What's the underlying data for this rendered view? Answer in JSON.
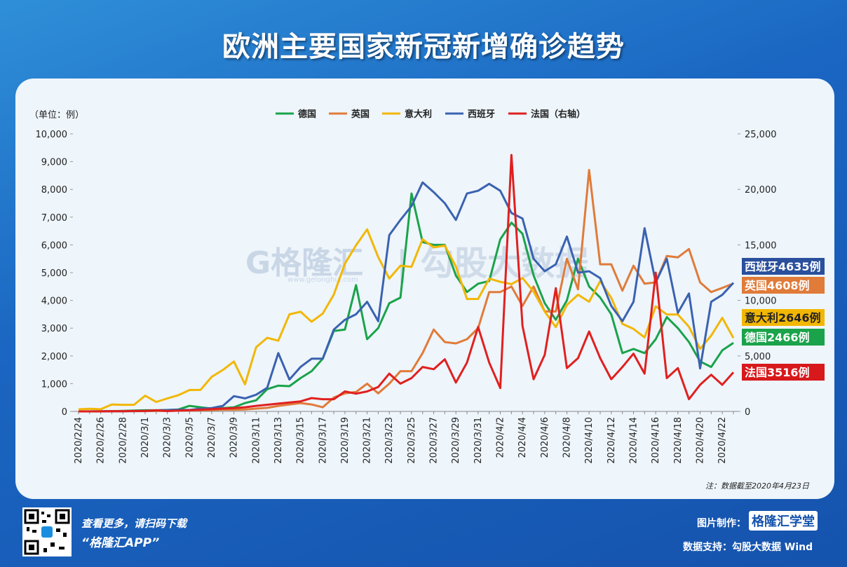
{
  "chart_data": {
    "type": "line",
    "title": "欧洲主要国家新冠新增确诊趋势",
    "y_unit": "（单位：例）",
    "note": "注：数据截至2020年4月23日",
    "categories": [
      "2020/2/24",
      null,
      "2020/2/26",
      null,
      "2020/2/28",
      null,
      "2020/3/1",
      null,
      "2020/3/3",
      null,
      "2020/3/5",
      null,
      "2020/3/7",
      null,
      "2020/3/9",
      null,
      "2020/3/11",
      null,
      "2020/3/13",
      null,
      "2020/3/15",
      null,
      "2020/3/17",
      null,
      "2020/3/19",
      null,
      "2020/3/21",
      null,
      "2020/3/23",
      null,
      "2020/3/25",
      null,
      "2020/3/27",
      null,
      "2020/3/29",
      null,
      "2020/3/31",
      null,
      "2020/4/2",
      null,
      "2020/4/4",
      null,
      "2020/4/6",
      null,
      "2020/4/8",
      null,
      "2020/4/10",
      null,
      "2020/4/12",
      null,
      "2020/4/14",
      null,
      "2020/4/16",
      null,
      "2020/4/18",
      null,
      "2020/4/20",
      null,
      "2020/4/22",
      null
    ],
    "series": [
      {
        "name": "德国",
        "color": "#1aa34a",
        "values": [
          0,
          2,
          5,
          10,
          20,
          30,
          40,
          40,
          50,
          70,
          200,
          150,
          100,
          120,
          150,
          300,
          400,
          800,
          930,
          910,
          1200,
          1450,
          1900,
          2900,
          2950,
          4550,
          2600,
          3000,
          3900,
          4100,
          7850,
          6100,
          6000,
          6000,
          4900,
          4300,
          4600,
          4700,
          6200,
          6800,
          6400,
          4900,
          3900,
          3300,
          4000,
          5500,
          4500,
          4100,
          3500,
          2100,
          2250,
          2100,
          2600,
          3400,
          3000,
          2500,
          1800,
          1600,
          2200,
          2466
        ]
      },
      {
        "name": "英国",
        "color": "#e07b39",
        "values": [
          0,
          0,
          5,
          5,
          10,
          10,
          10,
          15,
          20,
          30,
          30,
          40,
          50,
          60,
          60,
          70,
          100,
          130,
          200,
          250,
          300,
          250,
          150,
          500,
          650,
          700,
          1000,
          650,
          1000,
          1450,
          1450,
          2100,
          2950,
          2500,
          2450,
          2600,
          3000,
          4300,
          4300,
          4500,
          3800,
          4500,
          3600,
          3600,
          5500,
          4400,
          8700,
          5300,
          5300,
          4350,
          5250,
          4600,
          4650,
          5600,
          5550,
          5850,
          4650,
          4300,
          4450,
          4608
        ]
      },
      {
        "name": "意大利",
        "color": "#f2b705",
        "values": [
          76,
          93,
          78,
          250,
          238,
          240,
          566,
          342,
          466,
          587,
          769,
          778,
          1247,
          1492,
          1797,
          977,
          2313,
          2651,
          2547,
          3497,
          3590,
          3233,
          3526,
          4207,
          5322,
          5986,
          6557,
          5560,
          4789,
          5249,
          5210,
          6203,
          5909,
          5974,
          5217,
          4050,
          4053,
          4782,
          4668,
          4585,
          4805,
          4316,
          3599,
          3039,
          3836,
          4204,
          3951,
          4694,
          4092,
          3153,
          2972,
          2667,
          3786,
          3493,
          3491,
          3047,
          2256,
          2729,
          3370,
          2646
        ]
      },
      {
        "name": "西班牙",
        "color": "#3a62b0",
        "values": [
          0,
          0,
          2,
          5,
          7,
          10,
          20,
          35,
          50,
          60,
          50,
          100,
          120,
          200,
          550,
          470,
          600,
          850,
          2100,
          1150,
          1600,
          1900,
          1900,
          2950,
          3300,
          3500,
          3950,
          3250,
          6350,
          6900,
          7400,
          8250,
          7900,
          7500,
          6900,
          7850,
          7950,
          8200,
          7950,
          7150,
          6950,
          5500,
          5050,
          5300,
          6300,
          5000,
          5050,
          4800,
          3800,
          3250,
          3950,
          6600,
          4650,
          5500,
          3550,
          4250,
          1550,
          3950,
          4200,
          4635
        ]
      },
      {
        "name": "法国（右轴）",
        "color": "#e0201f",
        "axis": "y2",
        "values": [
          0,
          0,
          2,
          20,
          20,
          40,
          40,
          100,
          30,
          70,
          100,
          150,
          200,
          250,
          300,
          370,
          500,
          600,
          700,
          800,
          900,
          1200,
          1100,
          1100,
          1800,
          1600,
          1800,
          2200,
          3400,
          2500,
          3000,
          4000,
          3800,
          4700,
          2600,
          4400,
          7600,
          4400,
          2100,
          23100,
          7700,
          2900,
          5100,
          11100,
          3900,
          4800,
          7200,
          4800,
          2900,
          4000,
          5200,
          3400,
          12500,
          3000,
          3900,
          1100,
          2400,
          3300,
          2400,
          3516
        ]
      }
    ],
    "ylim": [
      0,
      10000
    ],
    "yticks": [
      0,
      {
        "value": 1000,
        "label": "1,000"
      },
      {
        "value": 2000,
        "label": "2,000"
      },
      {
        "value": 3000,
        "label": "3,000"
      },
      {
        "value": 4000,
        "label": "4,000"
      },
      {
        "value": 5000,
        "label": "5,000"
      },
      {
        "value": 6000,
        "label": "6,000"
      },
      {
        "value": 7000,
        "label": "7,000"
      },
      {
        "value": 8000,
        "label": "8,000"
      },
      {
        "value": 9000,
        "label": "9,000"
      },
      {
        "value": 10000,
        "label": "10,000"
      }
    ],
    "y2lim": [
      0,
      25000
    ],
    "y2ticks": [
      0,
      {
        "value": 5000,
        "label": "5,000"
      },
      {
        "value": 10000,
        "label": "10,000"
      },
      {
        "value": 15000,
        "label": "15,000"
      },
      {
        "value": 20000,
        "label": "20,000"
      },
      {
        "value": 25000,
        "label": "25,000"
      }
    ],
    "grid": false,
    "legend": "top",
    "annotations": [
      {
        "text": "西班牙4635例",
        "color": "#2a4f9c"
      },
      {
        "text": "英国4608例",
        "color": "#e07b39"
      },
      {
        "text": "意大利2646例",
        "color": "#f2b705"
      },
      {
        "text": "德国2466例",
        "color": "#1aa34a"
      },
      {
        "text": "法国3516例",
        "color": "#d7191c"
      }
    ]
  },
  "watermark": [
    "G格隆汇",
    "www.gelonghui.com",
    "| 勾股大数据"
  ],
  "footer": {
    "scan": "查看更多，请扫码下载",
    "app": "“格隆汇APP”",
    "maker_label": "图片制作：",
    "maker": "格隆汇学堂",
    "source": "数据支持：勾股大数据 Wind"
  }
}
